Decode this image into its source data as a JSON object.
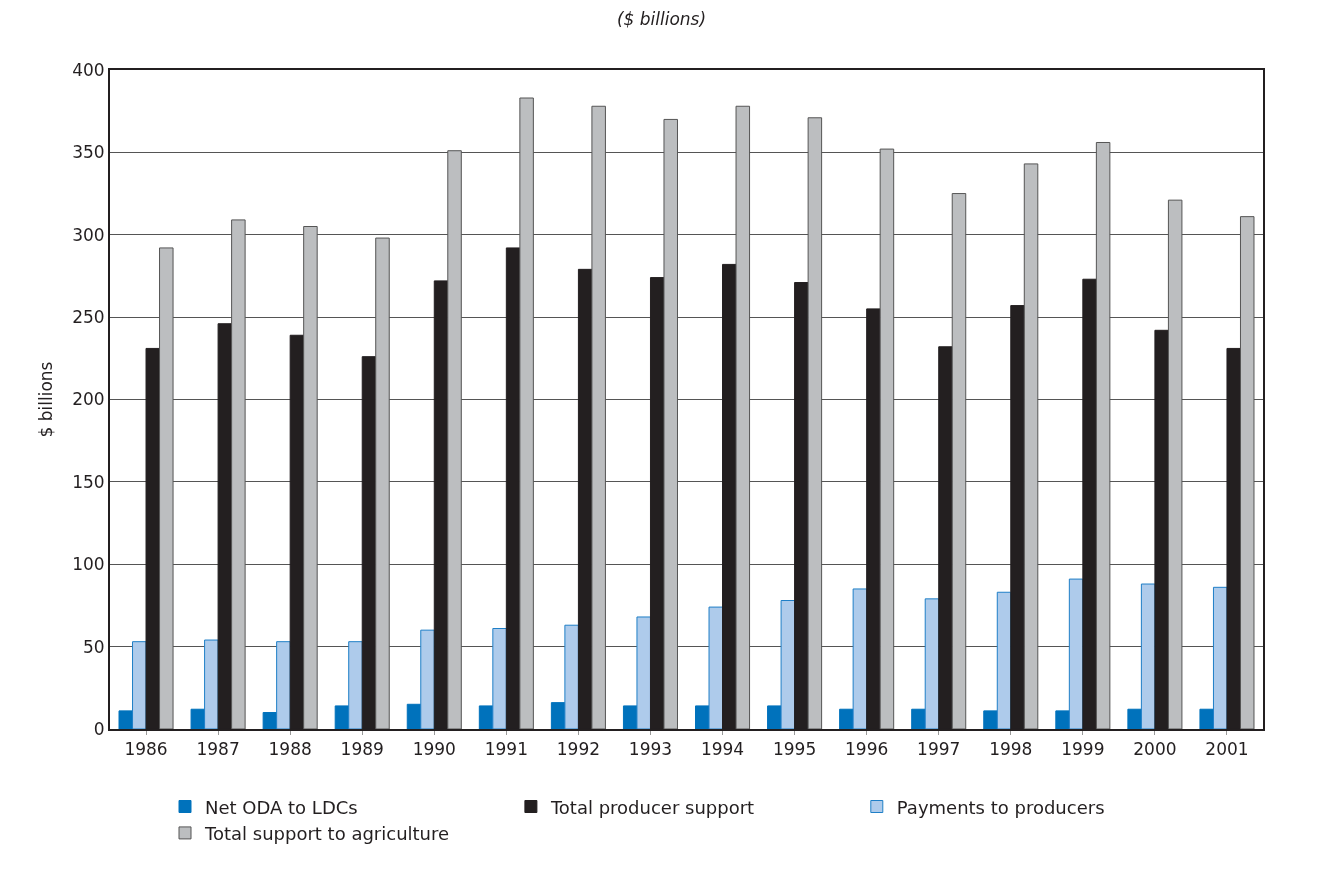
{
  "chart_data": {
    "type": "bar",
    "subtitle": "($ billions)",
    "ylabel": "$ billions",
    "categories": [
      "1986",
      "1987",
      "1988",
      "1989",
      "1990",
      "1991",
      "1992",
      "1993",
      "1994",
      "1995",
      "1996",
      "1997",
      "1998",
      "1999",
      "2000",
      "2001"
    ],
    "series": [
      {
        "name": "Net ODA to LDCs",
        "color": "#0072bc",
        "values": [
          11,
          12,
          10,
          14,
          15,
          14,
          16,
          14,
          14,
          14,
          12,
          12,
          11,
          11,
          12,
          12
        ]
      },
      {
        "name": "Payments to producers",
        "color": "#aecbeb",
        "values": [
          53,
          54,
          53,
          53,
          60,
          61,
          63,
          68,
          74,
          78,
          85,
          79,
          83,
          91,
          88,
          86
        ]
      },
      {
        "name": "Total producer support",
        "color": "#231f20",
        "values": [
          231,
          246,
          239,
          226,
          272,
          292,
          279,
          274,
          282,
          271,
          255,
          232,
          257,
          273,
          242,
          231
        ]
      },
      {
        "name": "Total support to agriculture",
        "color": "#bcbec0",
        "values": [
          292,
          309,
          305,
          298,
          351,
          383,
          378,
          370,
          378,
          371,
          352,
          325,
          343,
          356,
          321,
          311
        ]
      }
    ],
    "ylim": [
      0,
      400
    ],
    "yticks": [
      0,
      50,
      100,
      150,
      200,
      250,
      300,
      350,
      400
    ],
    "grid": "y",
    "legend": "bottom"
  }
}
